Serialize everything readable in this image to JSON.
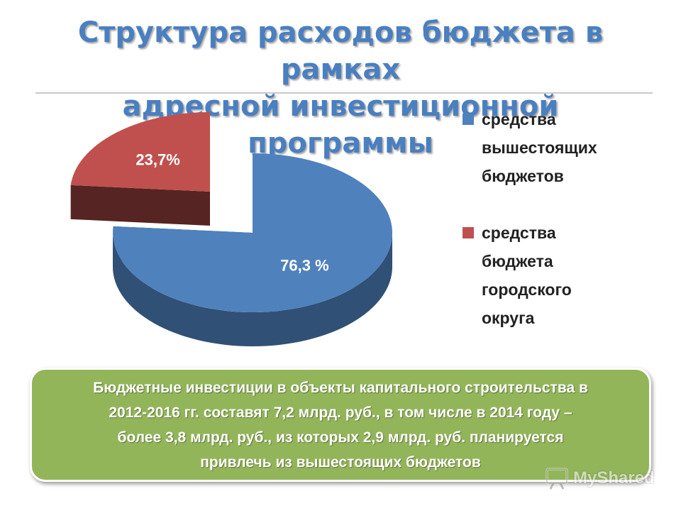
{
  "title": {
    "line1": "Структура расходов бюджета в рамках",
    "line2": "адресной инвестиционной программы"
  },
  "chart_data": {
    "type": "pie",
    "style": "3d-exploded",
    "slices": [
      {
        "label": "средства вышестоящих бюджетов",
        "value": 76.3,
        "data_label": "76,3 %",
        "color": "#4f81bd"
      },
      {
        "label": "средства бюджета городского округа",
        "value": 23.7,
        "data_label": "23,7%",
        "color": "#c0504d"
      }
    ],
    "legend_placement": "right"
  },
  "legend": {
    "items": [
      {
        "lines": [
          "средства",
          "вышестоящих",
          "бюджетов"
        ],
        "color": "#4f81bd"
      },
      {
        "lines": [
          "средства",
          "бюджета",
          "городского",
          "округа"
        ],
        "color": "#c0504d"
      }
    ]
  },
  "info_box": {
    "lines": [
      "Бюджетные инвестиции в объекты капитального строительства в",
      "2012-2016 гг. составят 7,2 млрд. руб., в том числе в 2014 году –",
      "более 3,8 млрд. руб., из которых 2,9 млрд. руб. планируется",
      "привлечь из вышестоящих бюджетов"
    ],
    "color": "#93b55a"
  },
  "watermark": {
    "text": "MyShared",
    "icon": "presentation-board-icon"
  }
}
